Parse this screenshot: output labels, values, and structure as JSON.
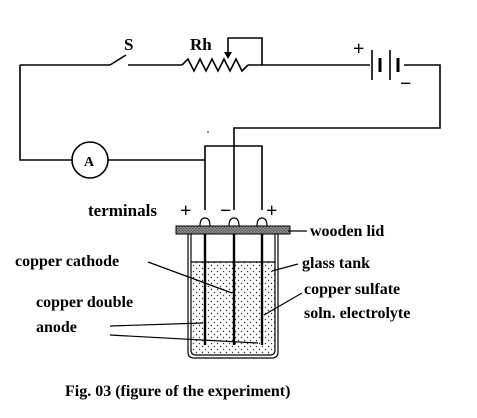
{
  "circuit": {
    "switch_label": "S",
    "rheostat_label": "Rh",
    "ammeter_label": "A",
    "battery_plus": "+",
    "battery_minus": "−"
  },
  "cell": {
    "terminals_label": "terminals",
    "terminal_signs": [
      "+",
      "−",
      "+"
    ],
    "wooden_lid": "wooden lid",
    "copper_cathode": "copper cathode",
    "glass_tank": "glass tank",
    "copper_sulfate": "copper sulfate",
    "soln_electrolyte": "soln. electrolyte",
    "copper_double": "copper double",
    "anode": "anode"
  },
  "caption": "Fig. 03 (figure of the experiment)"
}
